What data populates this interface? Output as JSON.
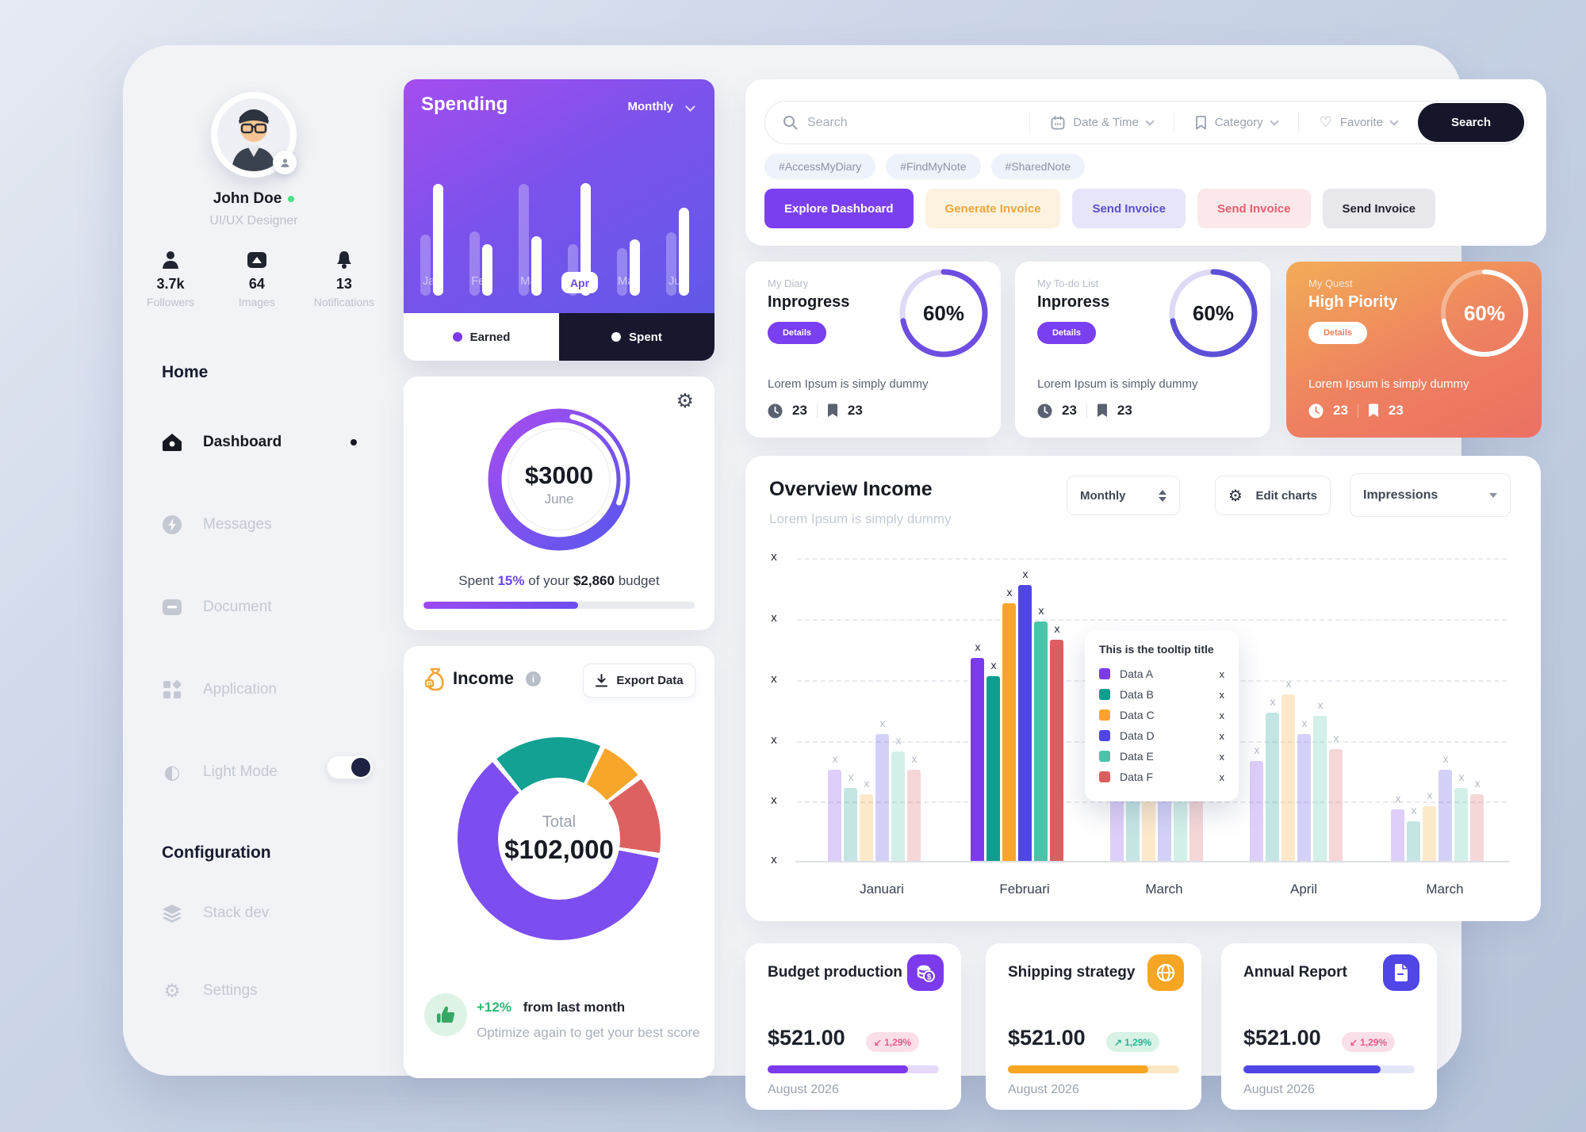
{
  "sidebar": {
    "profile": {
      "name": "John Doe",
      "role": "UI/UX Designer"
    },
    "stats": [
      {
        "icon": "person-icon",
        "value": "3.7k",
        "label": "Followers"
      },
      {
        "icon": "image-icon",
        "value": "64",
        "label": "Images"
      },
      {
        "icon": "bell-icon",
        "value": "13",
        "label": "Notifications"
      }
    ],
    "home_heading": "Home",
    "menu": [
      {
        "label": "Dashboard"
      },
      {
        "label": "Messages"
      },
      {
        "label": "Document"
      },
      {
        "label": "Application"
      },
      {
        "label": "Light Mode"
      }
    ],
    "config_heading": "Configuration",
    "config_menu": [
      {
        "label": "Stack dev"
      },
      {
        "label": "Settings"
      }
    ]
  },
  "spending": {
    "title": "Spending",
    "period": "Monthly",
    "earned_label": "Earned",
    "spent_label": "Spent",
    "selected_month": "Apr",
    "chart": {
      "type": "bar",
      "categories": [
        "Jan",
        "Feb",
        "Mar",
        "Apr",
        "May",
        "Jun"
      ],
      "series": [
        {
          "name": "secondary",
          "values": [
            54,
            57,
            99,
            46,
            42,
            56
          ]
        },
        {
          "name": "primary",
          "values": [
            99,
            46,
            53,
            100,
            50,
            78
          ]
        }
      ],
      "note": "values are percent of tallest bar"
    }
  },
  "budget": {
    "amount": "$3000",
    "month": "June",
    "spent_word": "Spent",
    "percent": "15%",
    "middle": "of your",
    "budget_amount": "$2,860",
    "suffix": "budget",
    "progress_percent": 57,
    "ring_percent": 60
  },
  "income": {
    "title": "Income",
    "export_label": "Export Data",
    "total_label": "Total",
    "total": "$102,000",
    "delta": "+12%",
    "delta_note": "from last month",
    "note": "Optimize again to get your best score",
    "chart": {
      "type": "donut",
      "slices": [
        {
          "name": "teal",
          "color": "#12a192",
          "percent": 17
        },
        {
          "name": "orange",
          "color": "#f8a62b",
          "percent": 7
        },
        {
          "name": "red",
          "color": "#dd6160",
          "percent": 12
        },
        {
          "name": "purple",
          "color": "#7c4df1",
          "percent": 64
        }
      ]
    }
  },
  "search": {
    "placeholder": "Search",
    "filters": [
      "Date & Time",
      "Category",
      "Favorite"
    ],
    "button": "Search",
    "tags": [
      "#AccessMyDiary",
      "#FindMyNote",
      "#SharedNote"
    ],
    "actions": [
      {
        "label": "Explore Dashboard",
        "bg": "#7b3ff2",
        "color": "#ffffff"
      },
      {
        "label": "Generate Invoice",
        "bg": "#fcf2df",
        "color": "#f0a63a"
      },
      {
        "label": "Send Invoice",
        "bg": "#e7e5f9",
        "color": "#5a50c8"
      },
      {
        "label": "Send Invoice",
        "bg": "#fbe8ea",
        "color": "#e4606f"
      },
      {
        "label": "Send Invoice",
        "bg": "#e8e8ec",
        "color": "#23232f"
      }
    ]
  },
  "status_cards": [
    {
      "category": "My Diary",
      "status": "Inprogress",
      "button": "Details",
      "percent": "60%",
      "description": "Lorem Ipsum is simply dummy",
      "time_count": "23",
      "bookmark_count": "23"
    },
    {
      "category": "My To-do List",
      "status": "Inproress",
      "button": "Details",
      "percent": "60%",
      "description": "Lorem Ipsum is simply dummy",
      "time_count": "23",
      "bookmark_count": "23"
    },
    {
      "category": "My Quest",
      "status": "High Piority",
      "button": "Details",
      "percent": "60%",
      "description": "Lorem Ipsum is simply dummy",
      "time_count": "23",
      "bookmark_count": "23"
    }
  ],
  "overview": {
    "title": "Overview Income",
    "subtitle": "Lorem Ipsum is simply dummy",
    "period": "Monthly",
    "edit_label": "Edit charts",
    "metric": "Impressions",
    "tooltip": {
      "title": "This is the tooltip title",
      "items": [
        {
          "label": "Data A",
          "color": "#7c3aed",
          "value": "x"
        },
        {
          "label": "Data B",
          "color": "#0f9d8f",
          "value": "x"
        },
        {
          "label": "Data C",
          "color": "#f8a62b",
          "value": "x"
        },
        {
          "label": "Data D",
          "color": "#4f46e5",
          "value": "x"
        },
        {
          "label": "Data E",
          "color": "#4ac3a8",
          "value": "x"
        },
        {
          "label": "Data F",
          "color": "#da6060",
          "value": "x"
        }
      ]
    },
    "chart_data": {
      "type": "bar",
      "categories": [
        "Januari",
        "Februari",
        "March",
        "April",
        "March"
      ],
      "series": [
        {
          "name": "Data A",
          "color": "#7c3aed",
          "values": [
            30,
            67,
            35,
            33,
            17
          ]
        },
        {
          "name": "Data B",
          "color": "#0f9d8f",
          "values": [
            24,
            61,
            40,
            49,
            13
          ]
        },
        {
          "name": "Data C",
          "color": "#f8a62b",
          "values": [
            22,
            85,
            45,
            55,
            18
          ]
        },
        {
          "name": "Data D",
          "color": "#4f46e5",
          "values": [
            42,
            91,
            42,
            42,
            30
          ]
        },
        {
          "name": "Data E",
          "color": "#4ac3a8",
          "values": [
            36,
            79,
            36,
            48,
            24
          ]
        },
        {
          "name": "Data F",
          "color": "#da6060",
          "values": [
            30,
            73,
            31,
            37,
            22
          ]
        }
      ],
      "highlight_category": "Februari",
      "y_tick_label": "x",
      "bar_label": "x",
      "ylabel": "",
      "xlabel": "",
      "note": "axis ticks and bar labels are literal x placeholders; values are percent of y-range"
    }
  },
  "bottom_cards": [
    {
      "title": "Budget production",
      "icon": "coins-icon",
      "amount": "$521.00",
      "delta": "1,29%",
      "direction": "down",
      "date": "August 2026",
      "accent": "#7c3aed",
      "track": "#e5d9fb",
      "progress": 82
    },
    {
      "title": "Shipping strategy",
      "icon": "globe-icon",
      "amount": "$521.00",
      "delta": "1,29%",
      "direction": "up",
      "date": "August 2026",
      "accent": "#f6a623",
      "track": "#fbe7c4",
      "progress": 82
    },
    {
      "title": "Annual Report",
      "icon": "file-icon",
      "amount": "$521.00",
      "delta": "1,29%",
      "direction": "down",
      "date": "August 2026",
      "accent": "#4f46e5",
      "track": "#e4e7f8",
      "progress": 80
    }
  ]
}
